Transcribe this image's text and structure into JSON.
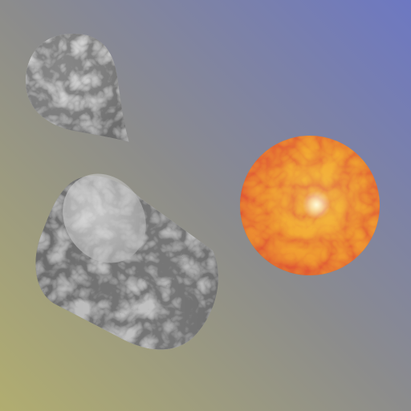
{
  "scene": {
    "background": {
      "color_top_right": "#6d78c2",
      "color_center": "#8c8c8c",
      "color_bottom_left": "#b1ad70"
    },
    "objects": [
      {
        "name": "teardrop",
        "material": "gray-marble",
        "colors": [
          "#f2f2f2",
          "#9a9a9a",
          "#3a3a3a"
        ]
      },
      {
        "name": "cylinder",
        "material": "gray-marble",
        "colors": [
          "#eeeeee",
          "#8f8f8f",
          "#2f2f2f"
        ]
      },
      {
        "name": "sphere",
        "material": "fire-marble",
        "colors": [
          "#fffb8a",
          "#f0a020",
          "#e04a1e",
          "#b62010"
        ]
      }
    ]
  }
}
